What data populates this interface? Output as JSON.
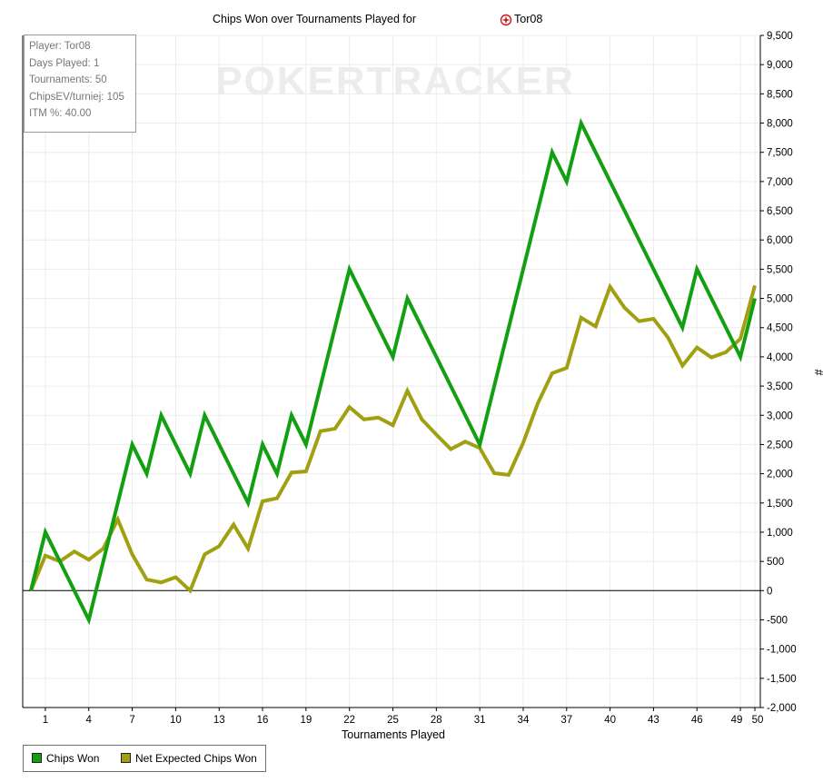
{
  "title": "Chips Won over Tournaments Played for",
  "player_name": "Tor08",
  "player_icon": "pokerstars-icon",
  "watermark": "POKERTRACKER",
  "info": {
    "player": "Player: Tor08",
    "days_played": "Days Played: 1",
    "tournaments": "Tournaments: 50",
    "chips_ev": "ChipsEV/turniej: 105",
    "itm": "ITM %: 40.00"
  },
  "chart_data": {
    "type": "line",
    "title": "Chips Won over Tournaments Played for Tor08",
    "xlabel": "Tournaments Played",
    "ylabel": "#",
    "xlim": [
      0,
      50
    ],
    "ylim": [
      -2000,
      9500
    ],
    "x_ticks": [
      1,
      4,
      7,
      10,
      13,
      16,
      19,
      22,
      25,
      28,
      31,
      34,
      37,
      40,
      43,
      46,
      49,
      50
    ],
    "y_ticks": [
      -2000,
      -1500,
      -1000,
      -500,
      0,
      500,
      1000,
      1500,
      2000,
      2500,
      3000,
      3500,
      4000,
      4500,
      5000,
      5500,
      6000,
      6500,
      7000,
      7500,
      8000,
      8500,
      9000,
      9500
    ],
    "y_tick_labels": [
      "-2,000",
      "-1,500",
      "-1,000",
      "-500",
      "0",
      "500",
      "1,000",
      "1,500",
      "2,000",
      "2,500",
      "3,000",
      "3,500",
      "4,000",
      "4,500",
      "5,000",
      "5,500",
      "6,000",
      "6,500",
      "7,000",
      "7,500",
      "8,000",
      "8,500",
      "9,000",
      "9,500"
    ],
    "grid": true,
    "legend_position": "bottom-left",
    "x": [
      0,
      1,
      2,
      3,
      4,
      5,
      6,
      7,
      8,
      9,
      10,
      11,
      12,
      13,
      14,
      15,
      16,
      17,
      18,
      19,
      20,
      21,
      22,
      23,
      24,
      25,
      26,
      27,
      28,
      29,
      30,
      31,
      32,
      33,
      34,
      35,
      36,
      37,
      38,
      39,
      40,
      41,
      42,
      43,
      44,
      45,
      46,
      47,
      48,
      49,
      50
    ],
    "series": [
      {
        "name": "Chips Won",
        "color": "#12a012",
        "values": [
          0,
          1000,
          500,
          0,
          -500,
          500,
          1500,
          2500,
          2000,
          3000,
          2500,
          2000,
          3000,
          2500,
          2000,
          1500,
          2500,
          2000,
          3000,
          2500,
          3500,
          4500,
          5500,
          5000,
          4500,
          4000,
          5000,
          4500,
          4000,
          3500,
          3000,
          2500,
          3500,
          4500,
          5500,
          6500,
          7500,
          7000,
          8000,
          7500,
          7000,
          6500,
          6000,
          5500,
          5000,
          4500,
          5500,
          5000,
          4500,
          4000,
          5000
        ]
      },
      {
        "name": "Net Expected Chips Won",
        "color": "#a0a012",
        "values": [
          0,
          600,
          500,
          670,
          530,
          720,
          1220,
          620,
          190,
          140,
          230,
          0,
          620,
          760,
          1130,
          720,
          1530,
          1580,
          2020,
          2040,
          2730,
          2770,
          3140,
          2930,
          2960,
          2830,
          3420,
          2930,
          2670,
          2420,
          2550,
          2440,
          2010,
          1980,
          2530,
          3200,
          3720,
          3810,
          4670,
          4520,
          5200,
          4840,
          4610,
          4650,
          4330,
          3850,
          4160,
          3990,
          4080,
          4310,
          5220
        ]
      }
    ]
  }
}
